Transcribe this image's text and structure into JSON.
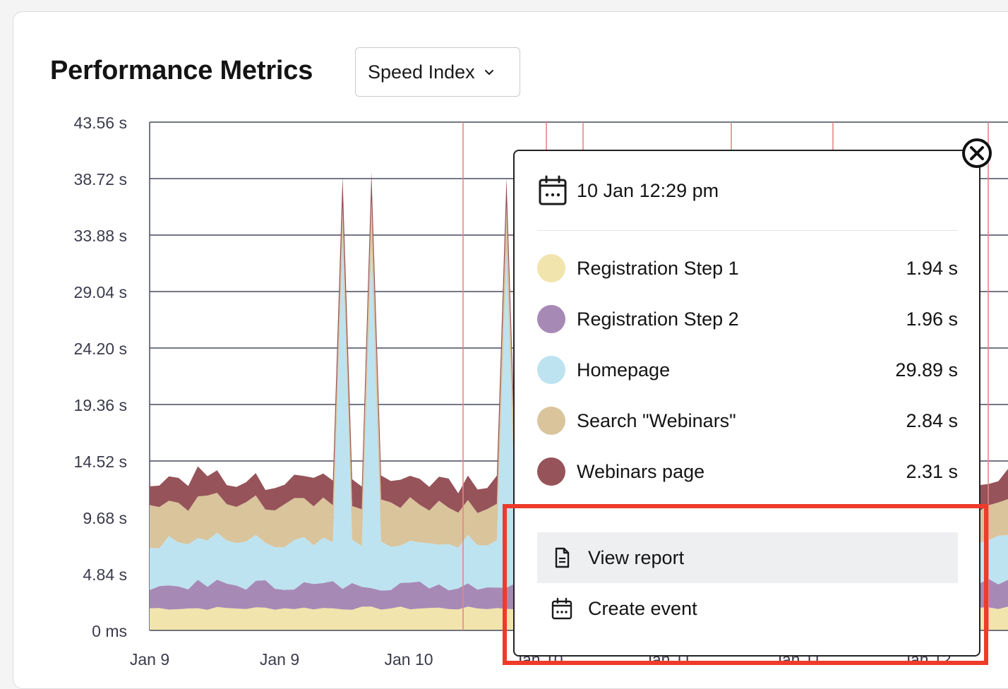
{
  "header": {
    "title": "Performance Metrics",
    "metric_select": {
      "value": "Speed Index"
    }
  },
  "chart_data": {
    "type": "area",
    "stacked": true,
    "y_tick_labels": [
      "0 ms",
      "4.84 s",
      "9.68 s",
      "14.52 s",
      "19.36 s",
      "24.20 s",
      "29.04 s",
      "33.88 s",
      "38.72 s",
      "43.56 s"
    ],
    "ylim": [
      0,
      43.56
    ],
    "x_tick_labels": [
      "Jan 9",
      "Jan 9",
      "Jan 10",
      "Jan 10",
      "Jan 11",
      "Jan 11",
      "Jan 12"
    ],
    "grid": true,
    "series": [
      {
        "name": "Registration Step 1",
        "color": "#f2e4ad"
      },
      {
        "name": "Registration Step 2",
        "color": "#a789b5"
      },
      {
        "name": "Homepage",
        "color": "#bde3f0"
      },
      {
        "name": "Search \"Webinars\"",
        "color": "#d9c49c"
      },
      {
        "name": "Webinars page",
        "color": "#965359"
      }
    ],
    "peak_totals_s": [
      38.9,
      39.3,
      38.8
    ]
  },
  "popup": {
    "datetime": "10 Jan 12:29 pm",
    "items": [
      {
        "name": "Registration Step 1",
        "value": "1.94 s",
        "color": "#f2e4ad"
      },
      {
        "name": "Registration Step 2",
        "value": "1.96 s",
        "color": "#a789b5"
      },
      {
        "name": "Homepage",
        "value": "29.89 s",
        "color": "#bde3f0"
      },
      {
        "name": "Search \"Webinars\"",
        "value": "2.84 s",
        "color": "#d9c49c"
      },
      {
        "name": "Webinars page",
        "value": "2.31 s",
        "color": "#965359"
      }
    ],
    "actions": {
      "view_report": "View report",
      "create_event": "Create event"
    }
  },
  "colors": {
    "event_marker": "#e58585",
    "highlight": "#ee3b2a",
    "grid": "#474a5c"
  }
}
